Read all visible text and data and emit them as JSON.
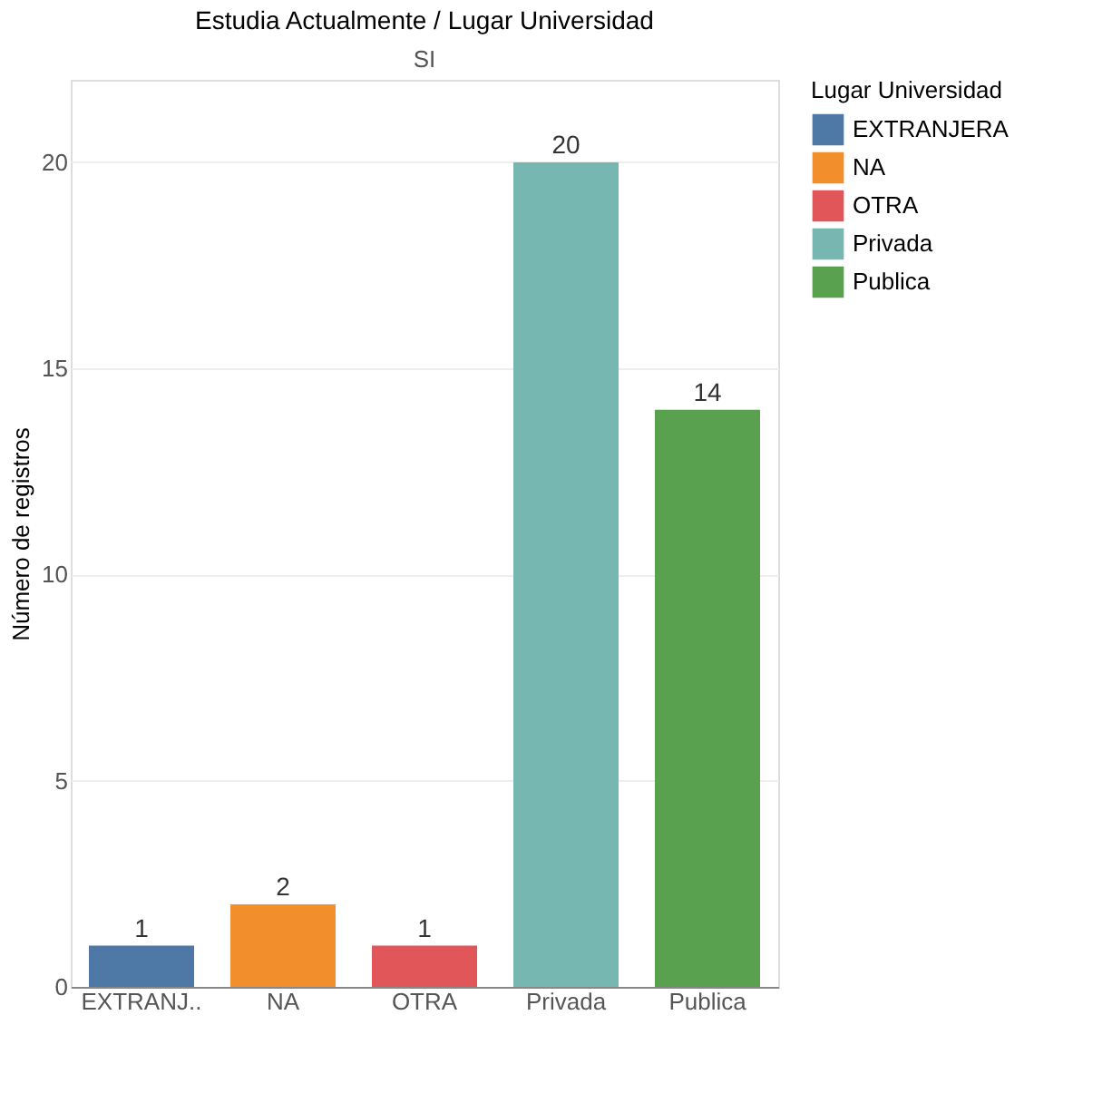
{
  "chart_data": {
    "type": "bar",
    "title": "Estudia Actualmente / Lugar Universidad",
    "subtitle": "SI",
    "ylabel": "Número de registros",
    "legend_title": "Lugar Universidad",
    "categories": [
      "EXTRANJ..",
      "NA",
      "OTRA",
      "Privada",
      "Publica"
    ],
    "series": [
      {
        "name": "EXTRANJERA",
        "color": "#4e79a7",
        "values": [
          1,
          null,
          null,
          null,
          null
        ]
      },
      {
        "name": "NA",
        "color": "#f28e2b",
        "values": [
          null,
          2,
          null,
          null,
          null
        ]
      },
      {
        "name": "OTRA",
        "color": "#e15759",
        "values": [
          null,
          null,
          1,
          null,
          null
        ]
      },
      {
        "name": "Privada",
        "color": "#76b7b2",
        "values": [
          null,
          null,
          null,
          20,
          null
        ]
      },
      {
        "name": "Publica",
        "color": "#59a14f",
        "values": [
          null,
          null,
          null,
          null,
          14
        ]
      }
    ],
    "ylim": [
      0,
      22
    ],
    "yticks": [
      0,
      5,
      10,
      15,
      20
    ],
    "grid": "y",
    "data_labels": true,
    "legend": "top right"
  }
}
